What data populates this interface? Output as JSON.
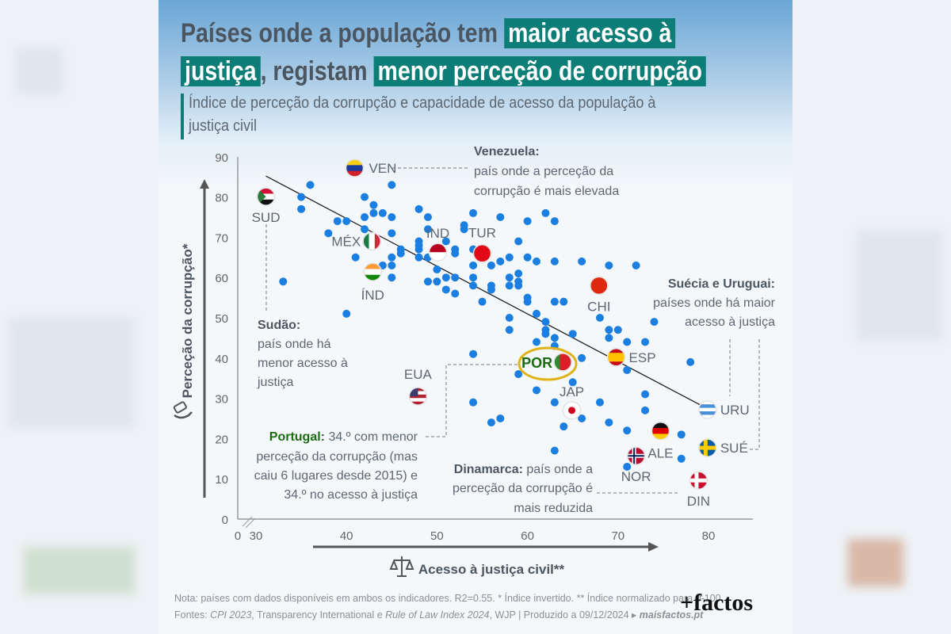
{
  "header": {
    "title_part1": "Países onde a população tem",
    "title_hl1": "maior acesso à",
    "title_hl2": "justiça",
    "title_part2": ", registam",
    "title_hl3": "menor perceção de corrupção",
    "subtitle": "Índice de perceção da corrupção e capacidade de acesso da população à justiça civil"
  },
  "annotations": {
    "venezuela_title": "Venezuela:",
    "venezuela_lines": [
      "país onde a perceção da",
      "corrupção é mais elevada"
    ],
    "sudao_title": "Sudão:",
    "sudao_lines": [
      "país onde há",
      "menor acesso à",
      "justiça"
    ],
    "suecia_title": "Suécia e Uruguai:",
    "suecia_lines": [
      "países onde há maior",
      "acesso à justiça"
    ],
    "portugal_title": "Portugal:",
    "portugal_lines": [
      "34.º com menor",
      "perceção da corrupção (mas",
      "caiu 6 lugares desde 2015) e",
      "34.º no acesso à justiça"
    ],
    "dinamarca_title": "Dinamarca:",
    "dinamarca_lines": [
      "país onde a",
      "perceção da corrupção é",
      "mais reduzida"
    ]
  },
  "footer": {
    "note": "Nota: países com dados disponíveis em ambos os indicadores. R2=0.55. * Índice invertido. ** Índice normalizado para 0-100.",
    "sources_prefix": "Fontes: ",
    "source1": "CPI 2023",
    "sources_mid": ", Transparency International e ",
    "source2": "Rule of Law Index 2024",
    "sources_end": ", WJP | Produzido a 09/12/2024 ▸ ",
    "site": "maisfactos.pt",
    "logo": "+factos"
  },
  "colors": {
    "dot": "#1a7fe0",
    "accent": "#0d7d78",
    "portugal": "#1b6b12",
    "highlight_ring": "#e0b31a"
  },
  "chart_data": {
    "type": "scatter",
    "title": "Países onde a população tem maior acesso à justiça, registam menor perceção de corrupção",
    "xlabel": "Acesso à justiça civil**",
    "ylabel": "Perceção da corrupção*",
    "xlim": [
      30,
      80
    ],
    "ylim": [
      0,
      90
    ],
    "xticks": [
      "30",
      "40",
      "50",
      "60",
      "70",
      "80"
    ],
    "xtick_values": [
      30,
      40,
      50,
      60,
      70,
      80
    ],
    "x_origin_label": "0",
    "yticks": [
      "0",
      "10",
      "20",
      "30",
      "40",
      "50",
      "60",
      "70",
      "80",
      "90"
    ],
    "ytick_values": [
      0,
      10,
      20,
      30,
      40,
      50,
      60,
      70,
      80,
      90
    ],
    "r2": 0.55,
    "trendline": [
      [
        31.1,
        85.2
      ],
      [
        79.9,
        27.4
      ]
    ],
    "points": [
      [
        36,
        83
      ],
      [
        45,
        83
      ],
      [
        35,
        80
      ],
      [
        35,
        77
      ],
      [
        42,
        80
      ],
      [
        43,
        78
      ],
      [
        43,
        76
      ],
      [
        44,
        76
      ],
      [
        45,
        75
      ],
      [
        39,
        74
      ],
      [
        40,
        74
      ],
      [
        42,
        75
      ],
      [
        42,
        72
      ],
      [
        38,
        71
      ],
      [
        45,
        71
      ],
      [
        41,
        65
      ],
      [
        45,
        65
      ],
      [
        45,
        63
      ],
      [
        44,
        63
      ],
      [
        45,
        60
      ],
      [
        46,
        67
      ],
      [
        46,
        66
      ],
      [
        48,
        77
      ],
      [
        49,
        75
      ],
      [
        49,
        72
      ],
      [
        48,
        69
      ],
      [
        48,
        68
      ],
      [
        48,
        67
      ],
      [
        48,
        65
      ],
      [
        49,
        65
      ],
      [
        51,
        69
      ],
      [
        52,
        67
      ],
      [
        52,
        66
      ],
      [
        50,
        62
      ],
      [
        49,
        59
      ],
      [
        50,
        59
      ],
      [
        51,
        60
      ],
      [
        52,
        60
      ],
      [
        51,
        57
      ],
      [
        52,
        56
      ],
      [
        54,
        76
      ],
      [
        53,
        73
      ],
      [
        53,
        72
      ],
      [
        54,
        67
      ],
      [
        54,
        63
      ],
      [
        54,
        60
      ],
      [
        54,
        58
      ],
      [
        55,
        54
      ],
      [
        33,
        59
      ],
      [
        40,
        51
      ],
      [
        57,
        75
      ],
      [
        60,
        74
      ],
      [
        62,
        76
      ],
      [
        63,
        74
      ],
      [
        59,
        69
      ],
      [
        56,
        63
      ],
      [
        57,
        64
      ],
      [
        58,
        65
      ],
      [
        60,
        65
      ],
      [
        61,
        64
      ],
      [
        63,
        64
      ],
      [
        66,
        64
      ],
      [
        69,
        63
      ],
      [
        72,
        63
      ],
      [
        56,
        58
      ],
      [
        56,
        57
      ],
      [
        58,
        60
      ],
      [
        58,
        58
      ],
      [
        59,
        61
      ],
      [
        59,
        59
      ],
      [
        59,
        58
      ],
      [
        60,
        55
      ],
      [
        60,
        54
      ],
      [
        63,
        54
      ],
      [
        64,
        54
      ],
      [
        61,
        51
      ],
      [
        58,
        50
      ],
      [
        58,
        47
      ],
      [
        62,
        49
      ],
      [
        62,
        47
      ],
      [
        62,
        46
      ],
      [
        63,
        45
      ],
      [
        65,
        46
      ],
      [
        61,
        44
      ],
      [
        63,
        43
      ],
      [
        68,
        50
      ],
      [
        69,
        47
      ],
      [
        70,
        47
      ],
      [
        69,
        45
      ],
      [
        71,
        44
      ],
      [
        73,
        44
      ],
      [
        74,
        49
      ],
      [
        54,
        41
      ],
      [
        66,
        40
      ],
      [
        78,
        39
      ],
      [
        59,
        36
      ],
      [
        65,
        34
      ],
      [
        61,
        32
      ],
      [
        71,
        37
      ],
      [
        54,
        29
      ],
      [
        63,
        29
      ],
      [
        68,
        29
      ],
      [
        73,
        31
      ],
      [
        73,
        27
      ],
      [
        66,
        25
      ],
      [
        56,
        24
      ],
      [
        57,
        25
      ],
      [
        64,
        23
      ],
      [
        69,
        24
      ],
      [
        71,
        22
      ],
      [
        77,
        21
      ],
      [
        77,
        15
      ],
      [
        63,
        17
      ],
      [
        71,
        13
      ]
    ],
    "highlighted": [
      {
        "code": "VEN",
        "x": 40.9,
        "y": 87.2,
        "flag": {
          "type": "h",
          "colors": [
            "#f7d116",
            "#1b3c9c",
            "#d21f2d"
          ]
        }
      },
      {
        "code": "SUD",
        "x": 31.1,
        "y": 80.1,
        "flag": {
          "type": "h",
          "colors": [
            "#d21034",
            "#ffffff",
            "#111111"
          ],
          "tri": "#2b7a3a"
        }
      },
      {
        "code": "MÉX",
        "x": 42.8,
        "y": 69.0,
        "flag": {
          "type": "v",
          "colors": [
            "#1c7a44",
            "#ffffff",
            "#ce2b37"
          ]
        }
      },
      {
        "code": "ÍND",
        "x": 42.9,
        "y": 61.4,
        "flag": {
          "type": "h",
          "colors": [
            "#ff9933",
            "#ffffff",
            "#138808"
          ]
        }
      },
      {
        "code": "IND",
        "x": 50.1,
        "y": 66.3,
        "flag": {
          "type": "h",
          "colors": [
            "#b8001f",
            "#ffffff"
          ]
        }
      },
      {
        "code": "TUR",
        "x": 55.0,
        "y": 66.0,
        "flag": {
          "type": "h",
          "colors": [
            "#e30a17"
          ]
        }
      },
      {
        "code": "CHI",
        "x": 67.9,
        "y": 58.0,
        "flag": {
          "type": "h",
          "colors": [
            "#de2910"
          ]
        }
      },
      {
        "code": "POR",
        "x": 63.9,
        "y": 39.0,
        "flag": {
          "type": "v",
          "colors": [
            "#2f8a2f",
            "#da1f26",
            "#da1f26"
          ]
        }
      },
      {
        "code": "ESP",
        "x": 69.8,
        "y": 40.2,
        "flag": {
          "type": "h",
          "colors": [
            "#c60b1e",
            "#ffc400",
            "#ffc400",
            "#c60b1e"
          ]
        }
      },
      {
        "code": "EUA",
        "x": 47.9,
        "y": 30.5,
        "flag": {
          "type": "h",
          "colors": [
            "#b22234",
            "#ffffff",
            "#b22234",
            "#ffffff",
            "#b22234"
          ]
        }
      },
      {
        "code": "JAP",
        "x": 64.9,
        "y": 27.0,
        "flag": {
          "type": "dot",
          "colors": [
            "#ffffff",
            "#d0021b"
          ]
        }
      },
      {
        "code": "URU",
        "x": 79.9,
        "y": 27.2,
        "flag": {
          "type": "h",
          "colors": [
            "#ffffff",
            "#4a90d9",
            "#ffffff",
            "#4a90d9",
            "#ffffff"
          ]
        }
      },
      {
        "code": "ALE",
        "x": 74.7,
        "y": 21.9,
        "flag": {
          "type": "h",
          "colors": [
            "#111111",
            "#dd0000",
            "#ffce00"
          ]
        }
      },
      {
        "code": "SUÉ",
        "x": 79.9,
        "y": 17.7,
        "flag": {
          "type": "cross",
          "colors": [
            "#0a5aa8",
            "#fecc00"
          ]
        }
      },
      {
        "code": "NOR",
        "x": 72.0,
        "y": 15.7,
        "flag": {
          "type": "cross",
          "colors": [
            "#ba0c2f",
            "#ffffff",
            "#00205b"
          ]
        }
      },
      {
        "code": "DIN",
        "x": 78.9,
        "y": 9.6,
        "flag": {
          "type": "cross",
          "colors": [
            "#c8102e",
            "#ffffff"
          ]
        }
      }
    ]
  }
}
